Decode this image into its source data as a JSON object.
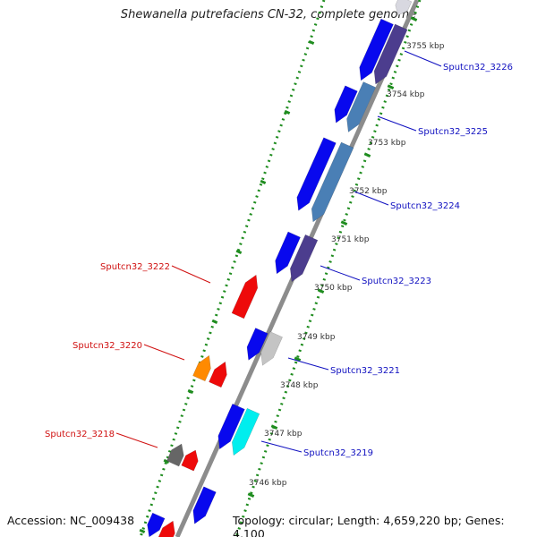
{
  "title": "Shewanella putrefaciens CN-32, complete genome",
  "footer": {
    "accession": "Accession: NC_009438",
    "summary": "Topology: circular; Length: 4,659,220 bp; Genes: 4,100"
  },
  "colors": {
    "backbone": "#8c8c8c",
    "ticks": "#1e8c1e",
    "forward_label": "#d01010",
    "reverse_label": "#1010c0"
  },
  "scale_labels": [
    "3755 kbp",
    "3754 kbp",
    "3753 kbp",
    "3752 kbp",
    "3751 kbp",
    "3750 kbp",
    "3749 kbp",
    "3748 kbp",
    "3747 kbp",
    "3746 kbp"
  ],
  "genes": [
    {
      "label": "Sputcn32_3226",
      "strand": "reverse"
    },
    {
      "label": "Sputcn32_3225",
      "strand": "reverse"
    },
    {
      "label": "Sputcn32_3224",
      "strand": "reverse"
    },
    {
      "label": "Sputcn32_3223",
      "strand": "reverse"
    },
    {
      "label": "Sputcn32_3222",
      "strand": "forward"
    },
    {
      "label": "Sputcn32_3221",
      "strand": "reverse"
    },
    {
      "label": "Sputcn32_3220",
      "strand": "forward"
    },
    {
      "label": "Sputcn32_3219",
      "strand": "reverse"
    },
    {
      "label": "Sputcn32_3218",
      "strand": "forward"
    }
  ]
}
